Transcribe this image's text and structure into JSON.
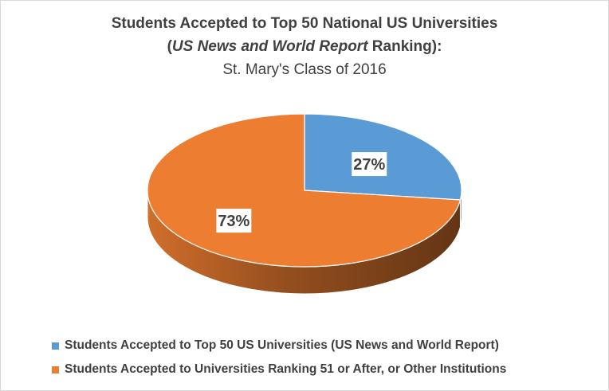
{
  "chart": {
    "title_line1": "Students Accepted to Top 50 National US Universities",
    "title_line2_italic": "US News and World Report",
    "title_line2_prefix": "(",
    "title_line2_suffix": " Ranking):",
    "title_line3": "St. Mary's Class of 2016"
  },
  "chart_data": {
    "type": "pie",
    "title": "Students Accepted to Top 50 National US Universities (US News and World Report Ranking): St. Mary's Class of 2016",
    "categories": [
      "Students Accepted to Top 50 US Universities (US News and World Report)",
      "Students Accepted to Universities Ranking 51 or After, or Other Institutions"
    ],
    "values": [
      27,
      73
    ],
    "data_labels": [
      "27%",
      "73%"
    ],
    "colors": [
      "#5B9BD5",
      "#ED7D31"
    ],
    "legend_position": "bottom"
  }
}
